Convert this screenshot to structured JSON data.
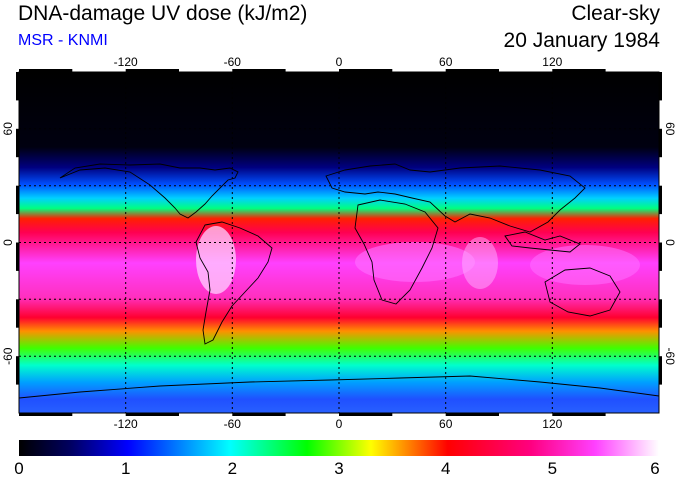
{
  "header": {
    "title": "DNA-damage UV dose (kJ/m2)",
    "source": "MSR - KNMI",
    "condition": "Clear-sky",
    "date": "20 January 1984"
  },
  "map": {
    "lon_ticks": [
      "-120",
      "-60",
      "0",
      "60",
      "120"
    ],
    "lat_ticks_left": [
      "60",
      "0",
      "-60"
    ],
    "lat_ticks_right": [
      "60",
      "0",
      "-60"
    ]
  },
  "colorbar": {
    "labels": [
      "0",
      "1",
      "2",
      "3",
      "4",
      "5",
      "6"
    ],
    "min": 0,
    "max": 6,
    "stops": [
      "#000000",
      "#0000a0",
      "#0000ff",
      "#00ffff",
      "#00ff00",
      "#ffff00",
      "#ff0000",
      "#ff00ff",
      "#ffffff"
    ]
  },
  "colors": {
    "polar_night": "#000008",
    "tropics": "#ff0040",
    "peak": "#ff40ff",
    "subtitle": "#0000ff"
  }
}
